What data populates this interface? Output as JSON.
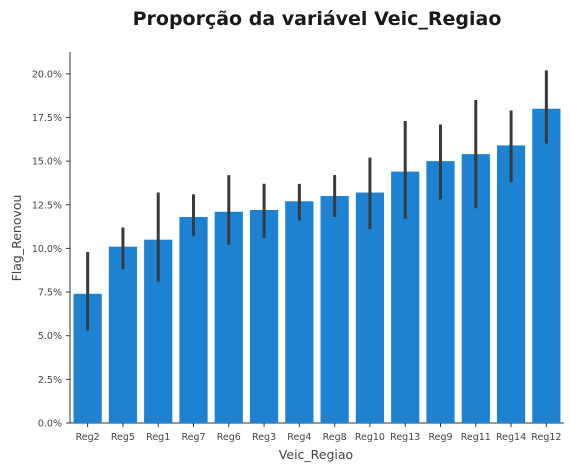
{
  "chart_data": {
    "type": "bar",
    "title": "Proporção da variável Veic_Regiao",
    "xlabel": "Veic_Regiao",
    "ylabel": "Flag_Renovou",
    "categories": [
      "Reg2",
      "Reg5",
      "Reg1",
      "Reg7",
      "Reg6",
      "Reg3",
      "Reg4",
      "Reg8",
      "Reg10",
      "Reg13",
      "Reg9",
      "Reg11",
      "Reg14",
      "Reg12"
    ],
    "values": [
      7.4,
      10.1,
      10.5,
      11.8,
      12.1,
      12.2,
      12.7,
      13.0,
      13.2,
      14.4,
      15.0,
      15.4,
      15.9,
      18.0
    ],
    "error_low": [
      5.3,
      8.8,
      8.1,
      10.7,
      10.2,
      10.6,
      11.6,
      11.8,
      11.1,
      11.7,
      12.8,
      12.3,
      13.8,
      16.0
    ],
    "error_high": [
      9.8,
      11.2,
      13.2,
      13.1,
      14.2,
      13.7,
      13.7,
      14.2,
      15.2,
      17.3,
      17.1,
      18.5,
      17.9,
      20.2
    ],
    "yticks": [
      0,
      2.5,
      5.0,
      7.5,
      10.0,
      12.5,
      15.0,
      17.5,
      20.0
    ],
    "ytick_labels": [
      "0.0%",
      "2.5%",
      "5.0%",
      "7.5%",
      "10.0%",
      "12.5%",
      "15.0%",
      "17.5%",
      "20.0%"
    ],
    "ylim": [
      0,
      21.25
    ],
    "grid": false,
    "colors": {
      "bar": "#1e82d2",
      "error": "#3a3a3a"
    }
  }
}
